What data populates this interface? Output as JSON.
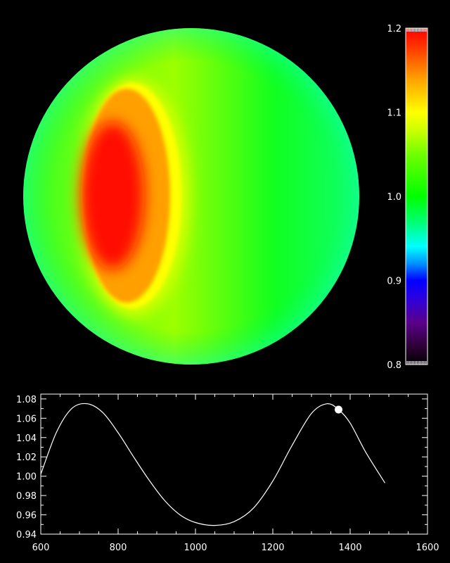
{
  "chart_data": [
    {
      "type": "heatmap",
      "description_view": "disk",
      "colorbar": {
        "range": [
          0.8,
          1.2
        ],
        "ticks": [
          0.8,
          0.9,
          1.0,
          1.1,
          1.2
        ],
        "tick_labels": [
          "0.8",
          "0.9",
          "1.0",
          "1.1",
          "1.2"
        ],
        "colormap": [
          {
            "v": 0.8,
            "c": "#000000"
          },
          {
            "v": 0.82,
            "c": "#2a0030"
          },
          {
            "v": 0.85,
            "c": "#5a008a"
          },
          {
            "v": 0.88,
            "c": "#2a00e0"
          },
          {
            "v": 0.9,
            "c": "#0000ff"
          },
          {
            "v": 0.92,
            "c": "#0090ff"
          },
          {
            "v": 0.94,
            "c": "#00ffff"
          },
          {
            "v": 0.97,
            "c": "#00ff70"
          },
          {
            "v": 1.0,
            "c": "#00ff00"
          },
          {
            "v": 1.05,
            "c": "#70ff00"
          },
          {
            "v": 1.08,
            "c": "#d0ff00"
          },
          {
            "v": 1.1,
            "c": "#ffff00"
          },
          {
            "v": 1.14,
            "c": "#ffa000"
          },
          {
            "v": 1.18,
            "c": "#ff3000"
          },
          {
            "v": 1.2,
            "c": "#ff0000"
          }
        ]
      },
      "disk": {
        "background_value": 1.0,
        "limb_value": 0.99,
        "spot_peak_value": 1.19,
        "spot_edge_value": 1.1
      }
    },
    {
      "type": "line",
      "xlim": [
        600,
        1600
      ],
      "ylim": [
        0.94,
        1.085
      ],
      "x_ticks": [
        600,
        800,
        1000,
        1200,
        1400,
        1600
      ],
      "x_tick_labels": [
        "600",
        "800",
        "1000",
        "1200",
        "1400",
        "1600"
      ],
      "y_ticks": [
        0.94,
        0.96,
        0.98,
        1.0,
        1.02,
        1.04,
        1.06,
        1.08
      ],
      "y_tick_labels": [
        "0.94",
        "0.96",
        "0.98",
        "1.00",
        "1.02",
        "1.04",
        "1.06",
        "1.08"
      ],
      "series": [
        {
          "x": [
            600,
            640,
            680,
            720,
            760,
            800,
            840,
            880,
            920,
            960,
            1000,
            1050,
            1100,
            1150,
            1200,
            1250,
            1300,
            1340,
            1370,
            1400,
            1440,
            1490
          ],
          "y": [
            1.002,
            1.045,
            1.07,
            1.075,
            1.066,
            1.045,
            1.02,
            0.996,
            0.975,
            0.96,
            0.952,
            0.949,
            0.953,
            0.967,
            0.995,
            1.032,
            1.065,
            1.075,
            1.069,
            1.055,
            1.025,
            0.993
          ]
        }
      ],
      "marker": {
        "x": 1370,
        "y": 1.069
      },
      "colors": {
        "line": "#ffffff",
        "axes": "#ffffff",
        "background": "#000000"
      }
    }
  ]
}
